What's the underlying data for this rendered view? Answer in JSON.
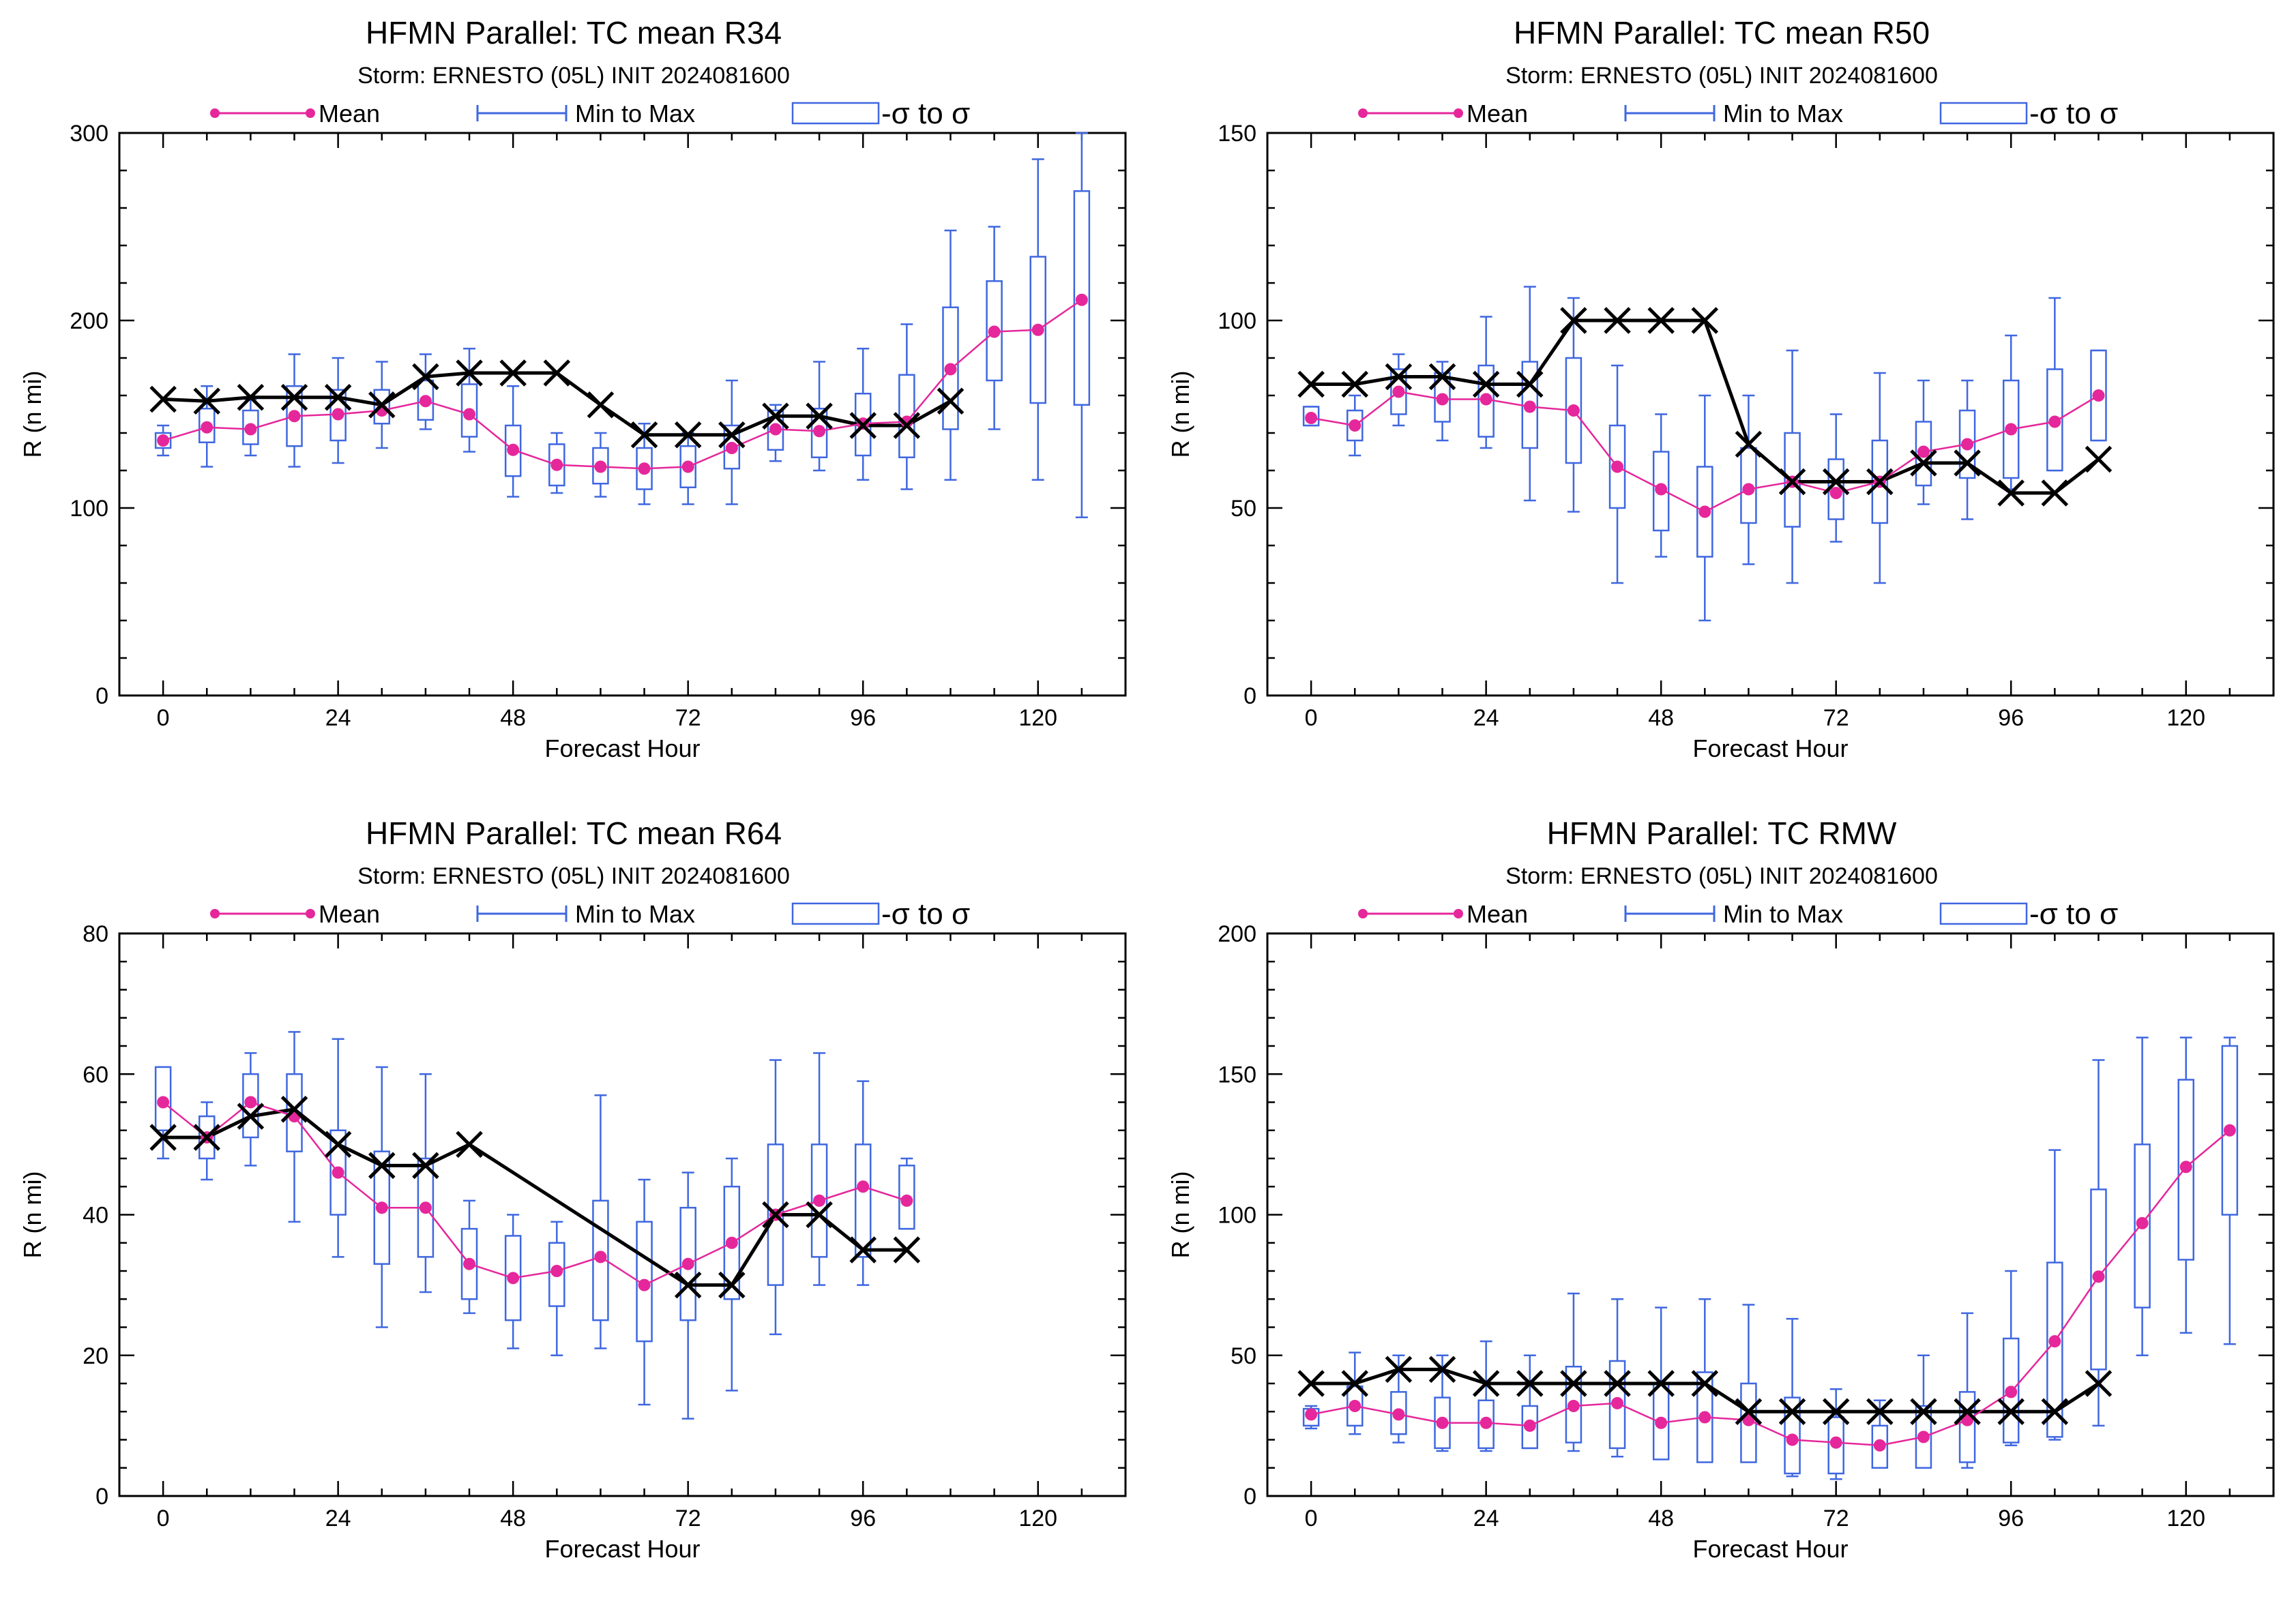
{
  "legend": {
    "mean": "Mean",
    "minmax": "Min to Max",
    "sigma": "-σ to σ"
  },
  "colors": {
    "mean": "#e5279b",
    "whisker": "#3f67e0",
    "box": "#3f67e0",
    "obs": "#000000"
  },
  "chart_data": [
    {
      "type": "box",
      "title": "HFMN Parallel: TC mean R34",
      "subtitle": "Storm: ERNESTO (05L) INIT 2024081600",
      "xlabel": "Forecast Hour",
      "ylabel": "R (n mi)",
      "xlim": [
        -6,
        132
      ],
      "ylim": [
        0,
        300
      ],
      "xticks": [
        0,
        24,
        48,
        72,
        96,
        120
      ],
      "yticks": [
        0,
        100,
        200,
        300
      ],
      "hours": [
        0,
        6,
        12,
        18,
        24,
        30,
        36,
        42,
        48,
        54,
        60,
        66,
        72,
        78,
        84,
        90,
        96,
        102,
        108,
        114,
        120,
        126
      ],
      "mean": [
        136,
        143,
        142,
        149,
        150,
        152,
        157,
        150,
        131,
        123,
        122,
        121,
        122,
        132,
        142,
        141,
        145,
        146,
        174,
        194,
        195,
        211
      ],
      "min": [
        128,
        122,
        128,
        122,
        124,
        132,
        142,
        130,
        106,
        108,
        106,
        102,
        102,
        102,
        125,
        120,
        115,
        110,
        115,
        142,
        115,
        95
      ],
      "max": [
        144,
        165,
        158,
        182,
        180,
        178,
        182,
        185,
        165,
        140,
        140,
        145,
        140,
        168,
        155,
        178,
        185,
        198,
        248,
        250,
        286,
        300
      ],
      "box_low": [
        132,
        135,
        134,
        133,
        136,
        145,
        147,
        138,
        117,
        112,
        113,
        110,
        111,
        121,
        131,
        127,
        128,
        127,
        142,
        168,
        156,
        155
      ],
      "box_high": [
        140,
        153,
        152,
        165,
        163,
        163,
        168,
        166,
        144,
        134,
        132,
        132,
        133,
        144,
        152,
        153,
        161,
        171,
        207,
        221,
        234,
        269
      ],
      "obs_hours": [
        0,
        6,
        12,
        18,
        24,
        30,
        36,
        42,
        48,
        54,
        60,
        66,
        72,
        78,
        84,
        90,
        96,
        102,
        108
      ],
      "obs": [
        158,
        157,
        159,
        159,
        159,
        155,
        170,
        172,
        172,
        172,
        155,
        139,
        139,
        139,
        149,
        149,
        144,
        144,
        157
      ]
    },
    {
      "type": "box",
      "title": "HFMN Parallel: TC mean R50",
      "subtitle": "Storm: ERNESTO (05L) INIT 2024081600",
      "xlabel": "Forecast Hour",
      "ylabel": "R (n mi)",
      "xlim": [
        -6,
        132
      ],
      "ylim": [
        0,
        150
      ],
      "xticks": [
        0,
        24,
        48,
        72,
        96,
        120
      ],
      "yticks": [
        0,
        50,
        100,
        150
      ],
      "hours": [
        0,
        6,
        12,
        18,
        24,
        30,
        36,
        42,
        48,
        54,
        60,
        66,
        72,
        78,
        84,
        90,
        96,
        102,
        108
      ],
      "mean": [
        74,
        72,
        81,
        79,
        79,
        77,
        76,
        61,
        55,
        49,
        55,
        57,
        54,
        57,
        65,
        67,
        71,
        73,
        80
      ],
      "min": [
        72,
        64,
        72,
        68,
        66,
        52,
        49,
        30,
        37,
        20,
        35,
        30,
        41,
        30,
        51,
        47,
        55,
        60,
        68
      ],
      "max": [
        77,
        80,
        91,
        89,
        101,
        109,
        106,
        88,
        75,
        80,
        80,
        92,
        75,
        86,
        84,
        84,
        96,
        106,
        92
      ],
      "box_low": [
        72,
        68,
        75,
        73,
        69,
        66,
        62,
        50,
        44,
        37,
        46,
        45,
        47,
        46,
        56,
        58,
        58,
        60,
        68
      ],
      "box_high": [
        77,
        76,
        87,
        86,
        88,
        89,
        90,
        72,
        65,
        61,
        66,
        70,
        63,
        68,
        73,
        76,
        84,
        87,
        92
      ],
      "obs_hours": [
        0,
        6,
        12,
        18,
        24,
        30,
        36,
        42,
        48,
        54,
        60,
        66,
        72,
        78,
        84,
        90,
        96,
        102,
        108
      ],
      "obs": [
        83,
        83,
        85,
        85,
        83,
        83,
        100,
        100,
        100,
        100,
        67,
        57,
        57,
        57,
        62,
        62,
        54,
        54,
        63
      ]
    },
    {
      "type": "box",
      "title": "HFMN Parallel: TC mean R64",
      "subtitle": "Storm: ERNESTO (05L) INIT 2024081600",
      "xlabel": "Forecast Hour",
      "ylabel": "R (n mi)",
      "xlim": [
        -6,
        132
      ],
      "ylim": [
        0,
        80
      ],
      "xticks": [
        0,
        24,
        48,
        72,
        96,
        120
      ],
      "yticks": [
        0,
        20,
        40,
        60,
        80
      ],
      "hours": [
        0,
        6,
        12,
        18,
        24,
        30,
        36,
        42,
        48,
        54,
        60,
        66,
        72,
        78,
        84,
        90,
        96,
        102
      ],
      "mean": [
        56,
        51,
        56,
        54,
        46,
        41,
        41,
        33,
        31,
        32,
        34,
        30,
        33,
        36,
        40,
        42,
        44,
        42
      ],
      "min": [
        48,
        45,
        47,
        39,
        34,
        24,
        29,
        26,
        21,
        20,
        21,
        13,
        11,
        15,
        23,
        30,
        30,
        38
      ],
      "max": [
        61,
        56,
        63,
        66,
        65,
        61,
        60,
        42,
        40,
        39,
        57,
        45,
        46,
        48,
        62,
        63,
        59,
        48
      ],
      "box_low": [
        52,
        48,
        51,
        49,
        40,
        33,
        34,
        28,
        25,
        27,
        25,
        22,
        25,
        28,
        30,
        34,
        34,
        38
      ],
      "box_high": [
        61,
        54,
        60,
        60,
        52,
        49,
        48,
        38,
        37,
        36,
        42,
        39,
        41,
        44,
        50,
        50,
        50,
        47
      ],
      "obs_hours": [
        0,
        6,
        12,
        18,
        24,
        30,
        36,
        42,
        72,
        78,
        84,
        90,
        96,
        102
      ],
      "obs": [
        51,
        51,
        54,
        55,
        50,
        47,
        47,
        50,
        30,
        30,
        40,
        40,
        35,
        35
      ]
    },
    {
      "type": "box",
      "title": "HFMN Parallel: TC RMW",
      "subtitle": "Storm: ERNESTO (05L) INIT 2024081600",
      "xlabel": "Forecast Hour",
      "ylabel": "R (n mi)",
      "xlim": [
        -6,
        132
      ],
      "ylim": [
        0,
        200
      ],
      "xticks": [
        0,
        24,
        48,
        72,
        96,
        120
      ],
      "yticks": [
        0,
        50,
        100,
        150,
        200
      ],
      "hours": [
        0,
        6,
        12,
        18,
        24,
        30,
        36,
        42,
        48,
        54,
        60,
        66,
        72,
        78,
        84,
        90,
        96,
        102,
        108,
        114,
        120,
        126
      ],
      "mean": [
        29,
        32,
        29,
        26,
        26,
        25,
        32,
        33,
        26,
        28,
        27,
        20,
        19,
        18,
        21,
        27,
        37,
        55,
        78,
        97,
        117,
        130
      ],
      "min": [
        24,
        22,
        19,
        16,
        16,
        17,
        16,
        14,
        14,
        16,
        16,
        7,
        6,
        11,
        10,
        10,
        18,
        20,
        25,
        50,
        58,
        54
      ],
      "max": [
        32,
        51,
        50,
        50,
        55,
        50,
        72,
        70,
        67,
        70,
        68,
        63,
        38,
        34,
        50,
        65,
        80,
        123,
        155,
        163,
        163,
        163
      ],
      "box_low": [
        25,
        25,
        22,
        17,
        17,
        17,
        19,
        17,
        13,
        12,
        12,
        8,
        8,
        10,
        10,
        12,
        19,
        21,
        45,
        67,
        84,
        100
      ],
      "box_high": [
        31,
        39,
        37,
        35,
        34,
        32,
        46,
        48,
        40,
        44,
        40,
        35,
        28,
        25,
        32,
        37,
        56,
        83,
        109,
        125,
        148,
        160
      ],
      "obs_hours": [
        0,
        6,
        12,
        18,
        24,
        30,
        36,
        42,
        48,
        54,
        60,
        66,
        72,
        78,
        84,
        90,
        96,
        102,
        108
      ],
      "obs": [
        40,
        40,
        45,
        45,
        40,
        40,
        40,
        40,
        40,
        40,
        30,
        30,
        30,
        30,
        30,
        30,
        30,
        30,
        40
      ]
    }
  ]
}
